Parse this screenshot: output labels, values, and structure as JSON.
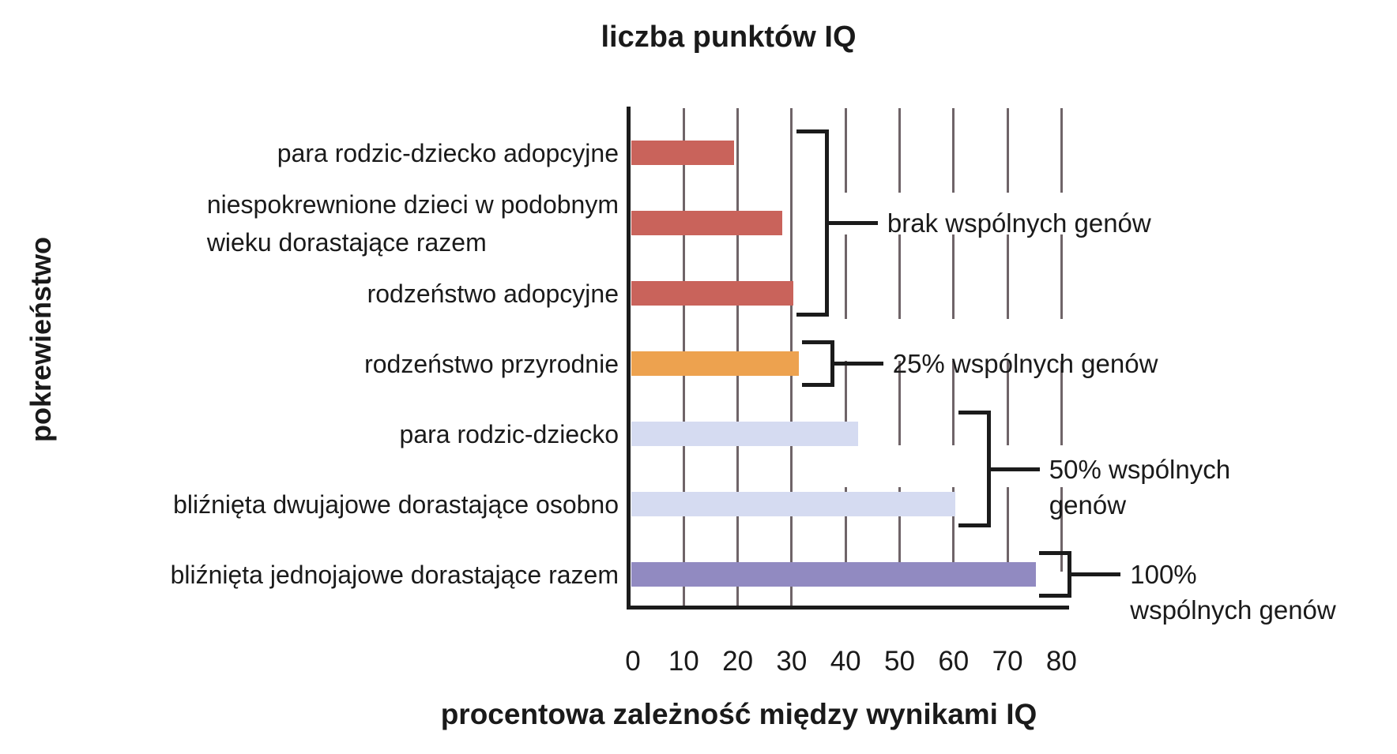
{
  "title": "liczba punktów IQ",
  "y_axis_label": "pokrewieństwo",
  "x_axis_label": "procentowa zależność między wynikami IQ",
  "chart_data": {
    "type": "bar",
    "orientation": "horizontal",
    "title": "liczba punktów IQ",
    "xlabel": "procentowa zależność między wynikami IQ",
    "ylabel": "pokrewieństwo",
    "xlim": [
      0,
      80
    ],
    "x_ticks": [
      0,
      10,
      20,
      30,
      40,
      50,
      60,
      70,
      80
    ],
    "grid": "vertical gridlines; solid at 10-30, dashed at 40-80",
    "legend": "none",
    "categories": [
      "para rodzic-dziecko adopcyjne",
      "niespokrewnione dzieci w podobnym\nwieku dorastające razem",
      "rodzeństwo adopcyjne",
      "rodzeństwo przyrodnie",
      "para rodzic-dziecko",
      "bliźnięta dwujajowe dorastające osobno",
      "bliźnięta jednojajowe dorastające razem"
    ],
    "values": [
      19,
      28,
      30,
      31,
      42,
      60,
      75
    ],
    "bar_colors": [
      "#c9635b",
      "#c9635b",
      "#c9635b",
      "#eda24f",
      "#d5dbf1",
      "#d5dbf1",
      "#918ac1"
    ],
    "annotations": [
      {
        "label": "brak wspólnych genów",
        "from_bar": 0,
        "to_bar": 2
      },
      {
        "label": "25% wspólnych genów",
        "from_bar": 3,
        "to_bar": 3
      },
      {
        "label": "50% wspólnych\ngenów",
        "from_bar": 4,
        "to_bar": 5
      },
      {
        "label": "100%\nwspólnych genów",
        "from_bar": 6,
        "to_bar": 6
      }
    ],
    "colors": {
      "no_shared_genes_bar": "#c9635b",
      "genes_25_bar": "#eda24f",
      "genes_50_bar": "#d5dbf1",
      "genes_100_bar": "#918ac1",
      "gridline": "#6f6468",
      "axis": "#1b1b1b",
      "text": "#1a1a1a",
      "background": "#ffffff"
    }
  }
}
